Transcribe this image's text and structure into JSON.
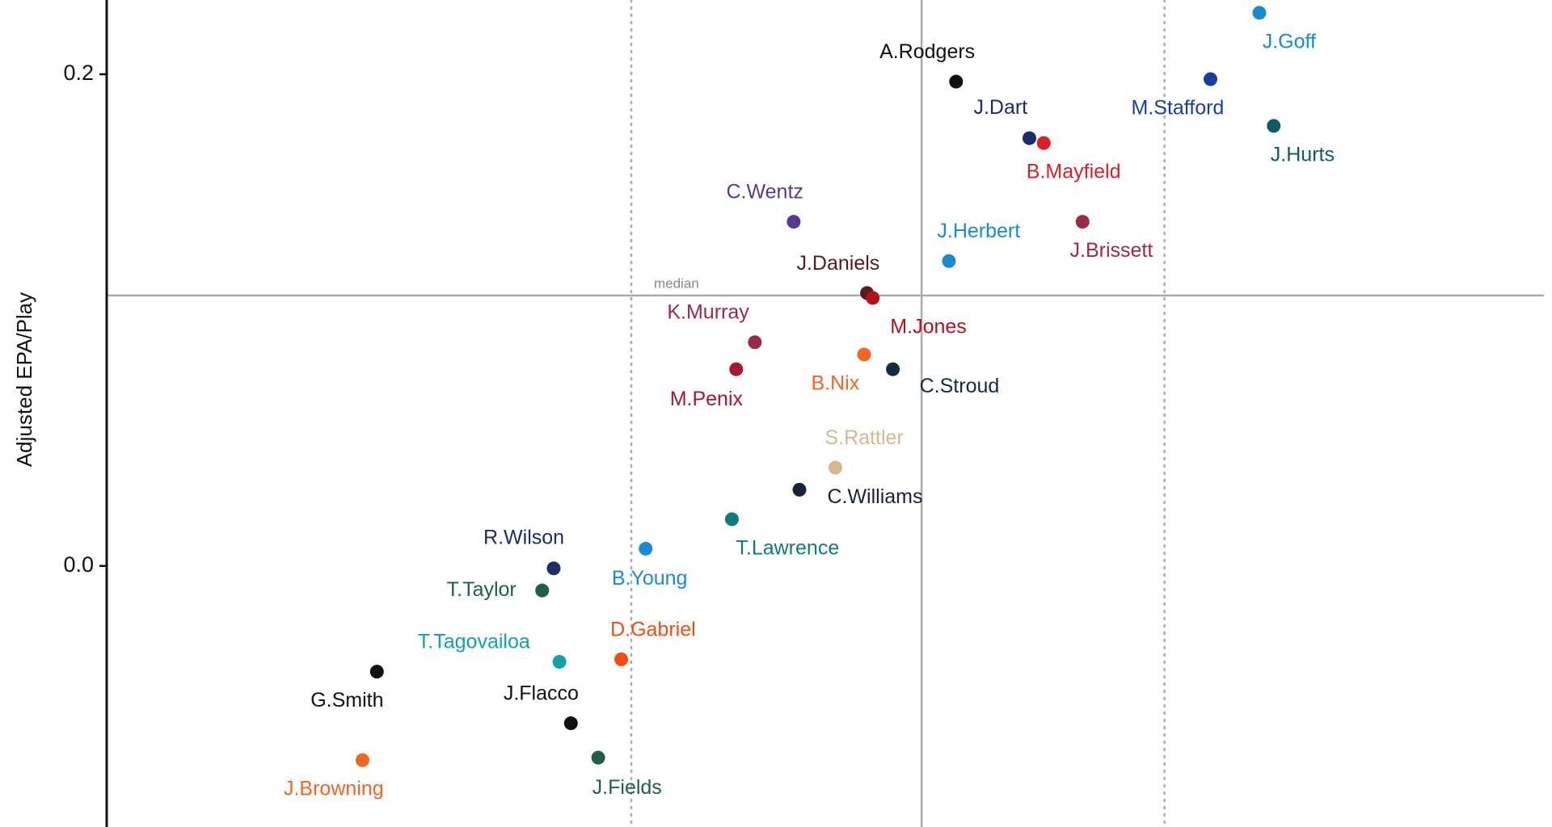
{
  "chart_data": {
    "type": "scatter",
    "y_label": "Adjusted EPA/Play",
    "xlim": [
      0,
      100
    ],
    "ylim": [
      -0.1062,
      0.2302
    ],
    "yticks": [
      {
        "value": 0,
        "label": "0.0"
      },
      0.2
    ],
    "median_label": "median",
    "x_median": 56.7,
    "y_median": 0.11,
    "x_quantiles": [
      36.5,
      73.6
    ],
    "points": [
      {
        "name": "A.Rodgers",
        "x": 59.1,
        "y": 0.197,
        "color": "#111111"
      },
      {
        "name": "J.Goff",
        "x": 80.2,
        "y": 0.225,
        "color": "#1a8bcb"
      },
      {
        "name": "M.Stafford",
        "x": 76.8,
        "y": 0.198,
        "color": "#1a3f9b"
      },
      {
        "name": "J.Hurts",
        "x": 81.2,
        "y": 0.179,
        "color": "#0f5d62"
      },
      {
        "name": "J.Dart",
        "x": 64.2,
        "y": 0.174,
        "color": "#1c2c6b"
      },
      {
        "name": "B.Mayfield",
        "x": 65.2,
        "y": 0.172,
        "color": "#d7202a"
      },
      {
        "name": "C.Wentz",
        "x": 47.8,
        "y": 0.14,
        "color": "#5a3a8f"
      },
      {
        "name": "J.Brissett",
        "x": 67.9,
        "y": 0.14,
        "color": "#9b2a48"
      },
      {
        "name": "J.Herbert",
        "x": 58.6,
        "y": 0.124,
        "color": "#1a8bd0"
      },
      {
        "name": "J.Daniels",
        "x": 52.9,
        "y": 0.111,
        "color": "#5a1a1a"
      },
      {
        "name": "M.Jones",
        "x": 53.3,
        "y": 0.109,
        "color": "#b0121c"
      },
      {
        "name": "K.Murray",
        "x": 45.1,
        "y": 0.091,
        "color": "#9b2a48"
      },
      {
        "name": "B.Nix",
        "x": 52.7,
        "y": 0.086,
        "color": "#f26522"
      },
      {
        "name": "C.Stroud",
        "x": 54.7,
        "y": 0.08,
        "color": "#132c45"
      },
      {
        "name": "M.Penix",
        "x": 43.8,
        "y": 0.08,
        "color": "#a71930"
      },
      {
        "name": "S.Rattler",
        "x": 50.7,
        "y": 0.04,
        "color": "#d4b98c"
      },
      {
        "name": "C.Williams",
        "x": 48.2,
        "y": 0.031,
        "color": "#182436"
      },
      {
        "name": "T.Lawrence",
        "x": 43.5,
        "y": 0.019,
        "color": "#107a7e"
      },
      {
        "name": "B.Young",
        "x": 37.5,
        "y": 0.007,
        "color": "#1a8bd0"
      },
      {
        "name": "R.Wilson",
        "x": 31.1,
        "y": -0.001,
        "color": "#1c2e66"
      },
      {
        "name": "T.Taylor",
        "x": 30.3,
        "y": -0.01,
        "color": "#1e5e4a"
      },
      {
        "name": "T.Tagovailoa",
        "x": 31.5,
        "y": -0.039,
        "color": "#14a0a8"
      },
      {
        "name": "D.Gabriel",
        "x": 35.8,
        "y": -0.038,
        "color": "#f24d12"
      },
      {
        "name": "G.Smith",
        "x": 18.8,
        "y": -0.043,
        "color": "#111111"
      },
      {
        "name": "J.Flacco",
        "x": 32.3,
        "y": -0.064,
        "color": "#111111"
      },
      {
        "name": "J.Browning",
        "x": 17.8,
        "y": -0.079,
        "color": "#f26522"
      },
      {
        "name": "J.Fields",
        "x": 34.2,
        "y": -0.078,
        "color": "#1e5e4a"
      }
    ]
  }
}
